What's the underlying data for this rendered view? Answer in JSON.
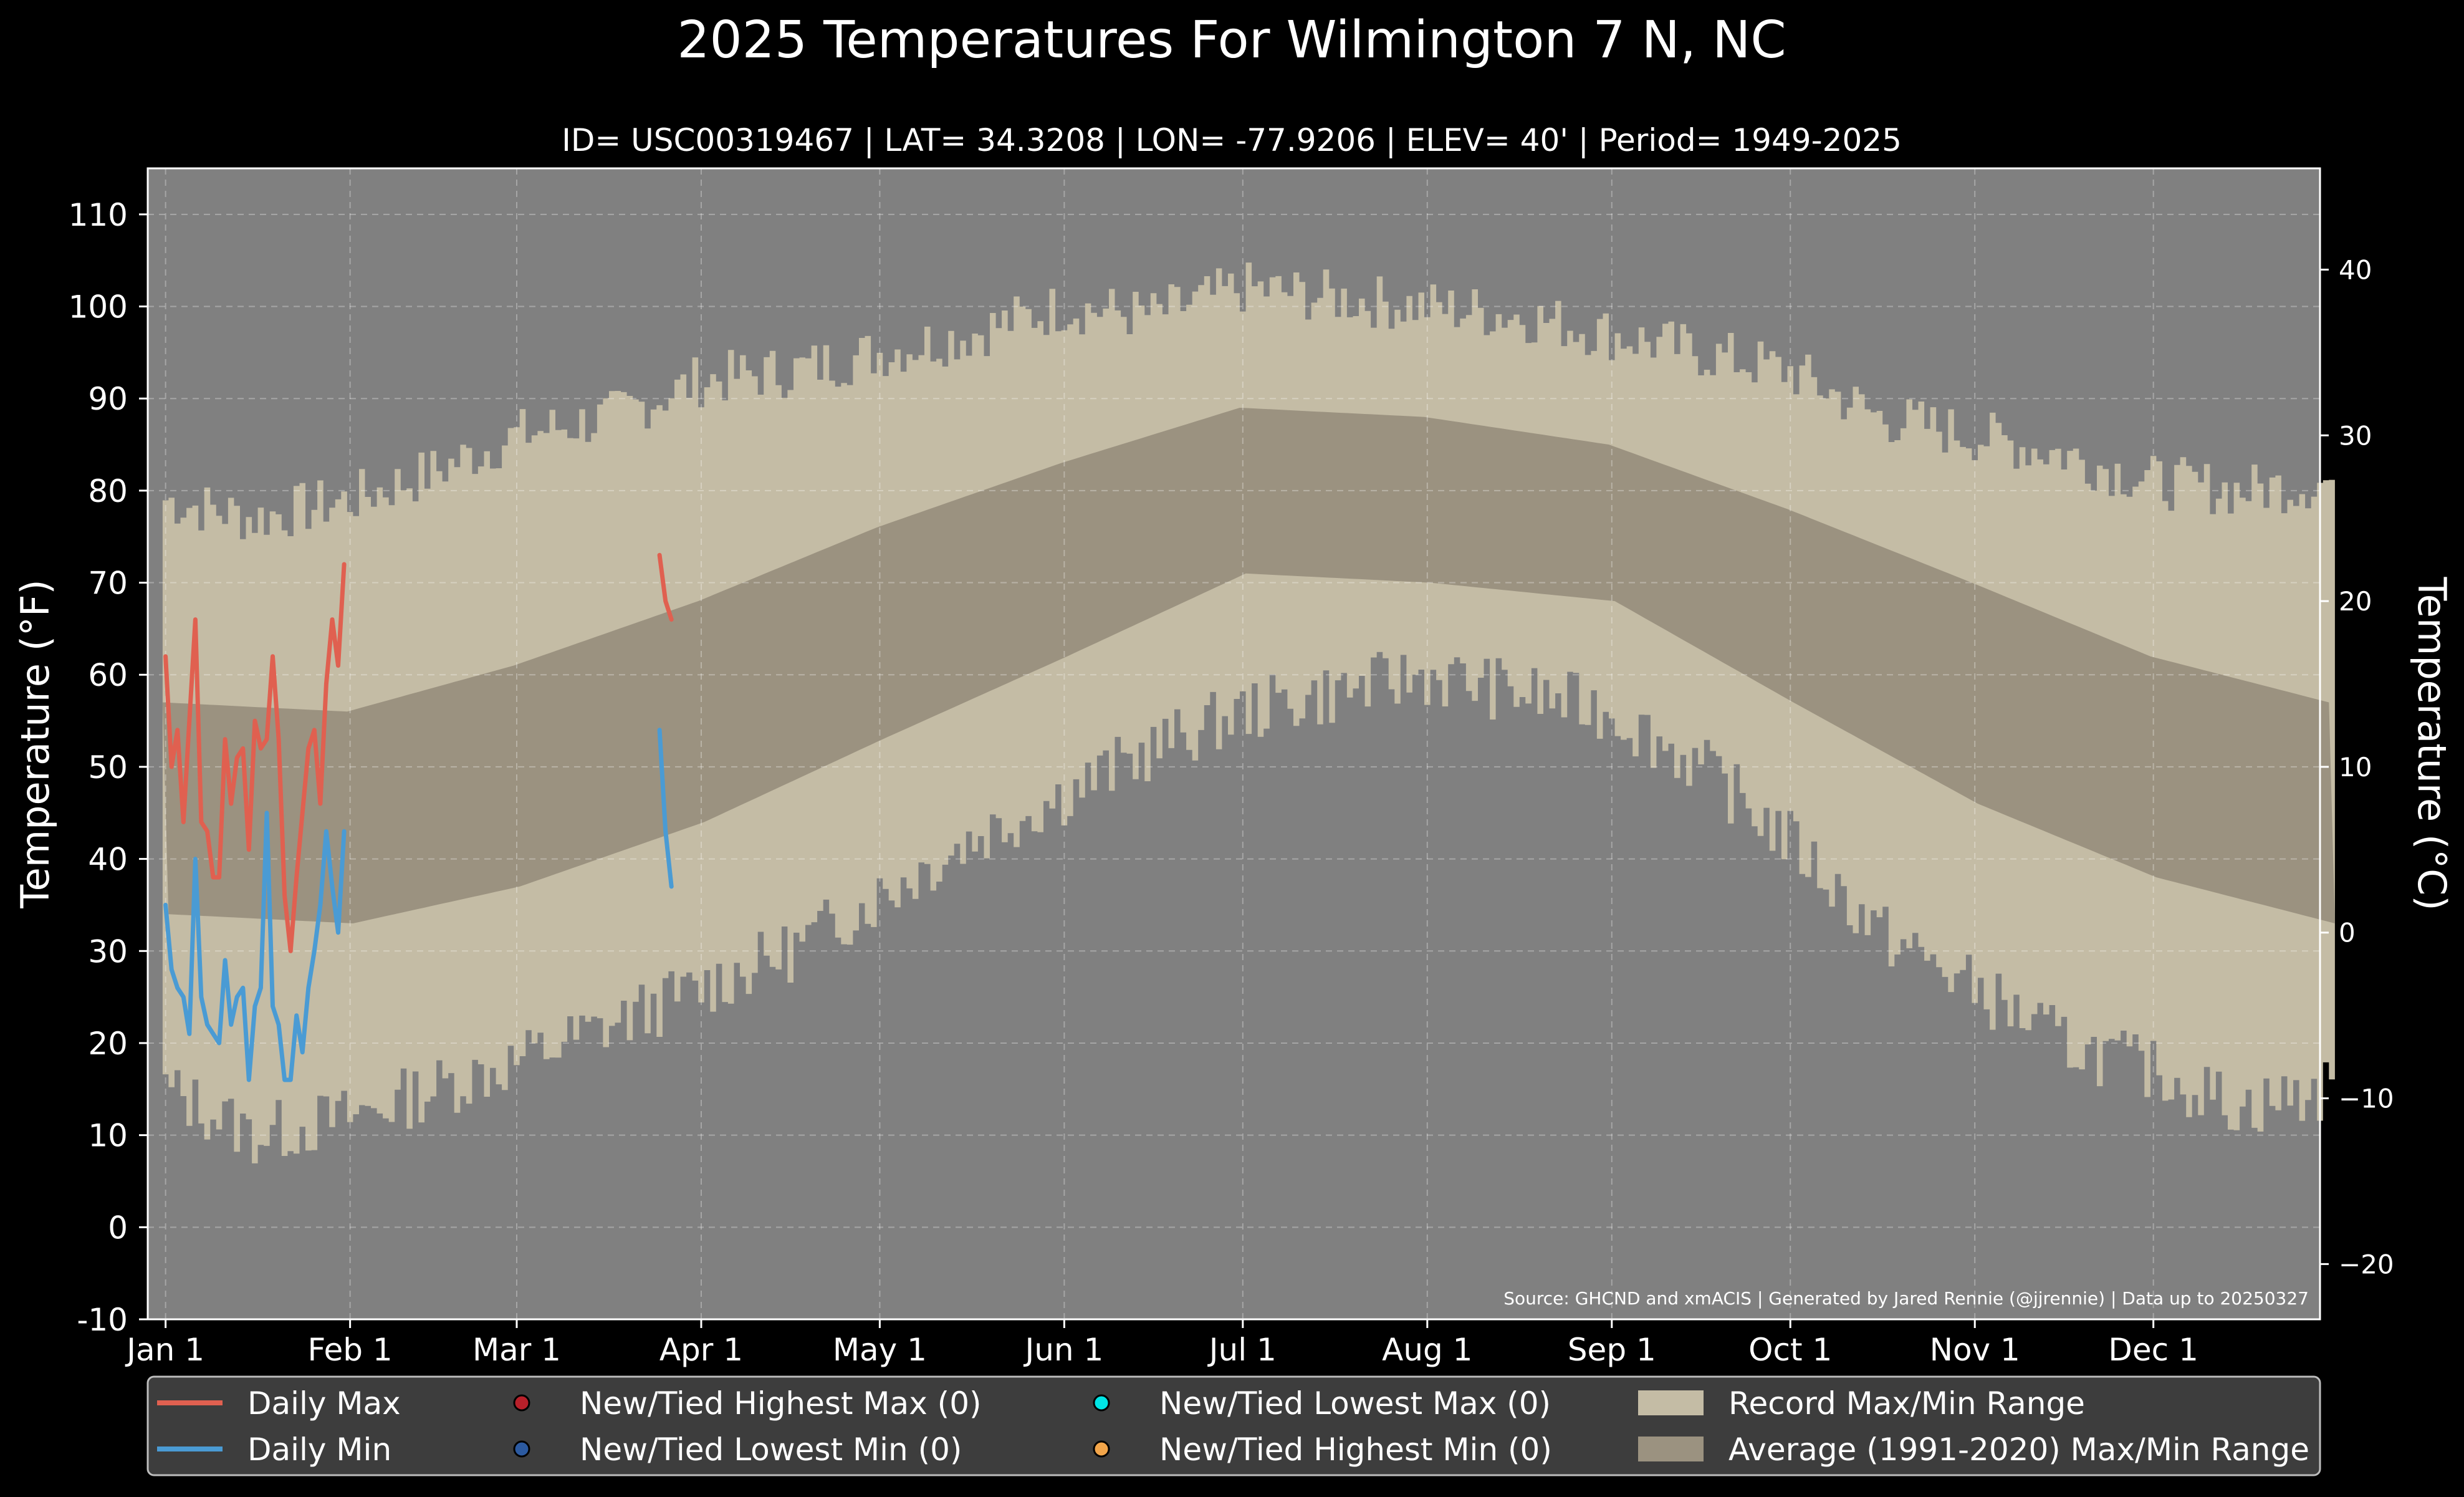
{
  "chart_data": {
    "type": "line",
    "title": "2025 Temperatures For Wilmington 7 N, NC",
    "subtitle": "ID= USC00319467 | LAT= 34.3208 | LON= -77.9206 | ELEV= 40' | Period= 1949-2025",
    "ylabel_left": "Temperature (°F)",
    "ylabel_right": "Temperature (°C)",
    "ylim_f": [
      -10,
      115
    ],
    "yticks_f": [
      -10,
      0,
      10,
      20,
      30,
      40,
      50,
      60,
      70,
      80,
      90,
      100,
      110
    ],
    "yticks_c": [
      -20,
      -10,
      0,
      10,
      20,
      30,
      40
    ],
    "xlim_days": [
      -3,
      362
    ],
    "xticks": [
      {
        "day": 0,
        "label": "Jan 1"
      },
      {
        "day": 31,
        "label": "Feb 1"
      },
      {
        "day": 59,
        "label": "Mar 1"
      },
      {
        "day": 90,
        "label": "Apr 1"
      },
      {
        "day": 120,
        "label": "May 1"
      },
      {
        "day": 151,
        "label": "Jun 1"
      },
      {
        "day": 181,
        "label": "Jul 1"
      },
      {
        "day": 212,
        "label": "Aug 1"
      },
      {
        "day": 243,
        "label": "Sep 1"
      },
      {
        "day": 273,
        "label": "Oct 1"
      },
      {
        "day": 304,
        "label": "Nov 1"
      },
      {
        "day": 334,
        "label": "Dec 1"
      }
    ],
    "grid": true,
    "legend_position": "bottom",
    "source": "Source: GHCND and xmACIS | Generated by Jared Rennie (@jjrennie) | Data up to 20250327",
    "record_max_curve": [
      [
        0,
        79
      ],
      [
        15,
        77
      ],
      [
        31,
        79
      ],
      [
        45,
        82
      ],
      [
        59,
        86
      ],
      [
        75,
        88
      ],
      [
        90,
        92
      ],
      [
        105,
        93
      ],
      [
        120,
        95
      ],
      [
        135,
        97
      ],
      [
        151,
        100
      ],
      [
        166,
        99
      ],
      [
        181,
        102
      ],
      [
        196,
        101
      ],
      [
        212,
        100
      ],
      [
        228,
        99
      ],
      [
        243,
        97
      ],
      [
        258,
        95
      ],
      [
        273,
        93
      ],
      [
        288,
        88
      ],
      [
        304,
        86
      ],
      [
        319,
        84
      ],
      [
        334,
        81
      ],
      [
        349,
        80
      ],
      [
        364,
        81
      ]
    ],
    "record_min_curve": [
      [
        0,
        15
      ],
      [
        15,
        10
      ],
      [
        31,
        12
      ],
      [
        45,
        15
      ],
      [
        59,
        18
      ],
      [
        75,
        22
      ],
      [
        90,
        26
      ],
      [
        105,
        30
      ],
      [
        120,
        36
      ],
      [
        135,
        42
      ],
      [
        151,
        47
      ],
      [
        166,
        52
      ],
      [
        181,
        56
      ],
      [
        196,
        58
      ],
      [
        212,
        60
      ],
      [
        228,
        58
      ],
      [
        243,
        56
      ],
      [
        258,
        50
      ],
      [
        273,
        42
      ],
      [
        288,
        32
      ],
      [
        304,
        26
      ],
      [
        319,
        20
      ],
      [
        334,
        17
      ],
      [
        349,
        13
      ],
      [
        364,
        15
      ]
    ],
    "average_max_curve": [
      [
        0,
        57
      ],
      [
        31,
        56
      ],
      [
        59,
        61
      ],
      [
        90,
        68
      ],
      [
        120,
        76
      ],
      [
        151,
        83
      ],
      [
        181,
        89
      ],
      [
        212,
        88
      ],
      [
        243,
        85
      ],
      [
        273,
        78
      ],
      [
        304,
        70
      ],
      [
        334,
        62
      ],
      [
        364,
        57
      ]
    ],
    "average_min_curve": [
      [
        0,
        34
      ],
      [
        31,
        33
      ],
      [
        59,
        37
      ],
      [
        90,
        44
      ],
      [
        120,
        53
      ],
      [
        151,
        62
      ],
      [
        181,
        71
      ],
      [
        212,
        70
      ],
      [
        243,
        68
      ],
      [
        273,
        57
      ],
      [
        304,
        46
      ],
      [
        334,
        38
      ],
      [
        364,
        33
      ]
    ],
    "series": [
      {
        "name": "Daily Max",
        "color": "#e06050",
        "segments": [
          [
            [
              0,
              62
            ],
            [
              1,
              50
            ],
            [
              2,
              54
            ],
            [
              3,
              44
            ],
            [
              4,
              55
            ],
            [
              5,
              66
            ],
            [
              6,
              44
            ],
            [
              7,
              43
            ],
            [
              8,
              38
            ],
            [
              9,
              38
            ],
            [
              10,
              53
            ],
            [
              11,
              46
            ],
            [
              12,
              51
            ],
            [
              13,
              52
            ],
            [
              14,
              41
            ],
            [
              15,
              55
            ],
            [
              16,
              52
            ],
            [
              17,
              53
            ],
            [
              18,
              62
            ],
            [
              19,
              53
            ],
            [
              20,
              36
            ],
            [
              21,
              30
            ],
            [
              22,
              38
            ],
            [
              23,
              45
            ],
            [
              24,
              52
            ],
            [
              25,
              54
            ],
            [
              26,
              46
            ],
            [
              27,
              59
            ],
            [
              28,
              66
            ],
            [
              29,
              61
            ],
            [
              30,
              72
            ]
          ],
          [
            [
              83,
              73
            ],
            [
              84,
              68
            ],
            [
              85,
              66
            ]
          ]
        ]
      },
      {
        "name": "Daily Min",
        "color": "#4a9bd4",
        "segments": [
          [
            [
              0,
              35
            ],
            [
              1,
              28
            ],
            [
              2,
              26
            ],
            [
              3,
              25
            ],
            [
              4,
              21
            ],
            [
              5,
              40
            ],
            [
              6,
              25
            ],
            [
              7,
              22
            ],
            [
              8,
              21
            ],
            [
              9,
              20
            ],
            [
              10,
              29
            ],
            [
              11,
              22
            ],
            [
              12,
              25
            ],
            [
              13,
              26
            ],
            [
              14,
              16
            ],
            [
              15,
              24
            ],
            [
              16,
              26
            ],
            [
              17,
              45
            ],
            [
              18,
              24
            ],
            [
              19,
              22
            ],
            [
              20,
              16
            ],
            [
              21,
              16
            ],
            [
              22,
              23
            ],
            [
              23,
              19
            ],
            [
              24,
              26
            ],
            [
              25,
              30
            ],
            [
              26,
              35
            ],
            [
              27,
              43
            ],
            [
              28,
              37
            ],
            [
              29,
              32
            ],
            [
              30,
              43
            ]
          ],
          [
            [
              83,
              54
            ],
            [
              84,
              43
            ],
            [
              85,
              37
            ]
          ]
        ]
      }
    ],
    "legend": [
      {
        "type": "line",
        "label": "Daily Max",
        "color": "#e06050"
      },
      {
        "type": "line",
        "label": "Daily Min",
        "color": "#4a9bd4"
      },
      {
        "type": "marker",
        "label": "New/Tied Highest Max (0)",
        "color": "#b8202a"
      },
      {
        "type": "marker",
        "label": "New/Tied Lowest Min (0)",
        "color": "#2c5aa0"
      },
      {
        "type": "marker",
        "label": "New/Tied Lowest Max (0)",
        "color": "#00e5e5"
      },
      {
        "type": "marker",
        "label": "New/Tied Highest Min (0)",
        "color": "#f2a54a"
      },
      {
        "type": "patch",
        "label": "Record Max/Min Range",
        "color": "#c4bca5"
      },
      {
        "type": "patch",
        "label": "Average (1991-2020) Max/Min Range",
        "color": "#9b9280"
      }
    ],
    "colors": {
      "background": "#000000",
      "plot_background": "#808080",
      "record_fill": "#c4bca5",
      "average_fill": "#9b9280",
      "legend_background": "#3d3d3d"
    }
  }
}
